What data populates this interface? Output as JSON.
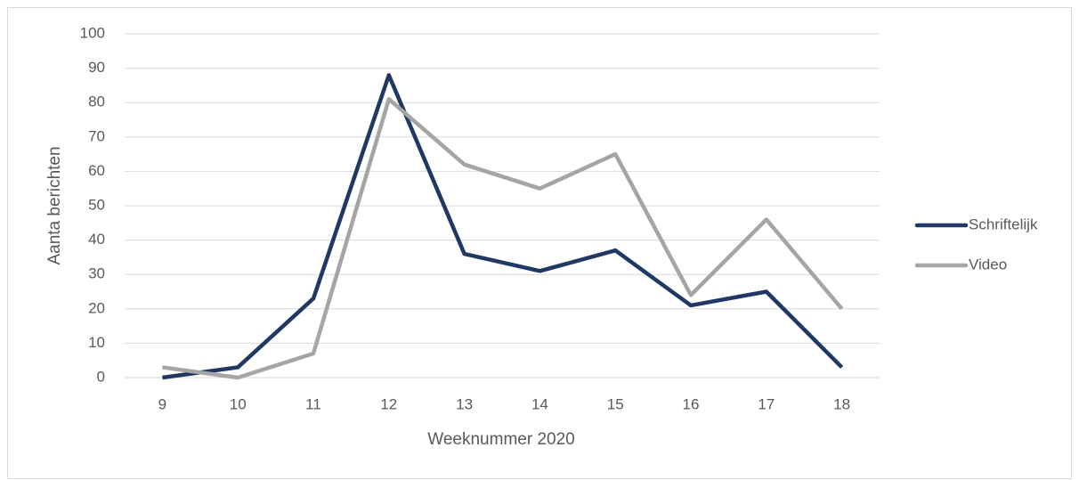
{
  "chart_data": {
    "type": "line",
    "x_label": "Weeknummer 2020",
    "y_label": "Aanta berichten",
    "categories": [
      "9",
      "10",
      "11",
      "12",
      "13",
      "14",
      "15",
      "16",
      "17",
      "18"
    ],
    "series": [
      {
        "name": "Schriftelijk",
        "color": "#203864",
        "values": [
          0,
          3,
          23,
          88,
          36,
          31,
          37,
          21,
          25,
          3
        ]
      },
      {
        "name": "Video",
        "color": "#a5a5a5",
        "values": [
          3,
          0,
          7,
          81,
          62,
          55,
          65,
          24,
          46,
          20
        ]
      }
    ],
    "ylim": [
      0,
      100
    ],
    "yticks": [
      0,
      10,
      20,
      30,
      40,
      50,
      60,
      70,
      80,
      90,
      100
    ],
    "grid": true,
    "legend": "right"
  }
}
